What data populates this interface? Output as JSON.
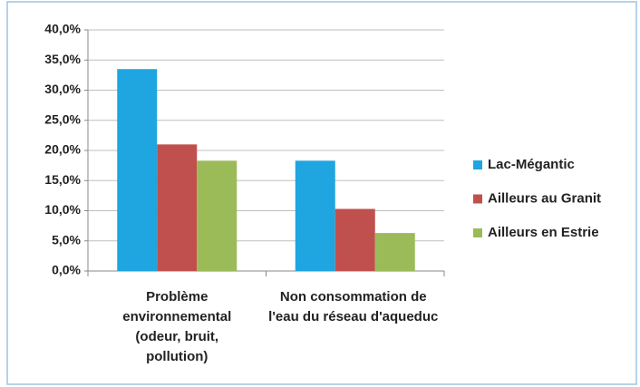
{
  "chart_data": {
    "type": "bar",
    "categories": [
      "Problème environnemental (odeur, bruit, pollution)",
      "Non consommation de l'eau du réseau d'aqueduc"
    ],
    "series": [
      {
        "name": "Lac-Mégantic",
        "color": "#1fa5e0",
        "values": [
          33.5,
          18.3
        ]
      },
      {
        "name": "Ailleurs au Granit",
        "color": "#c0504d",
        "values": [
          21.0,
          10.3
        ]
      },
      {
        "name": "Ailleurs en Estrie",
        "color": "#9bbb59",
        "values": [
          18.3,
          6.3
        ]
      }
    ],
    "ylim": [
      0,
      40
    ],
    "yticks": [
      {
        "value": 0,
        "label": "0,0%"
      },
      {
        "value": 5,
        "label": "5,0%"
      },
      {
        "value": 10,
        "label": "10,0%"
      },
      {
        "value": 15,
        "label": "15,0%"
      },
      {
        "value": 20,
        "label": "20,0%"
      },
      {
        "value": 25,
        "label": "25,0%"
      },
      {
        "value": 30,
        "label": "30,0%"
      },
      {
        "value": 35,
        "label": "35,0%"
      },
      {
        "value": 40,
        "label": "40,0%"
      }
    ],
    "grid": true,
    "legend": "right"
  }
}
